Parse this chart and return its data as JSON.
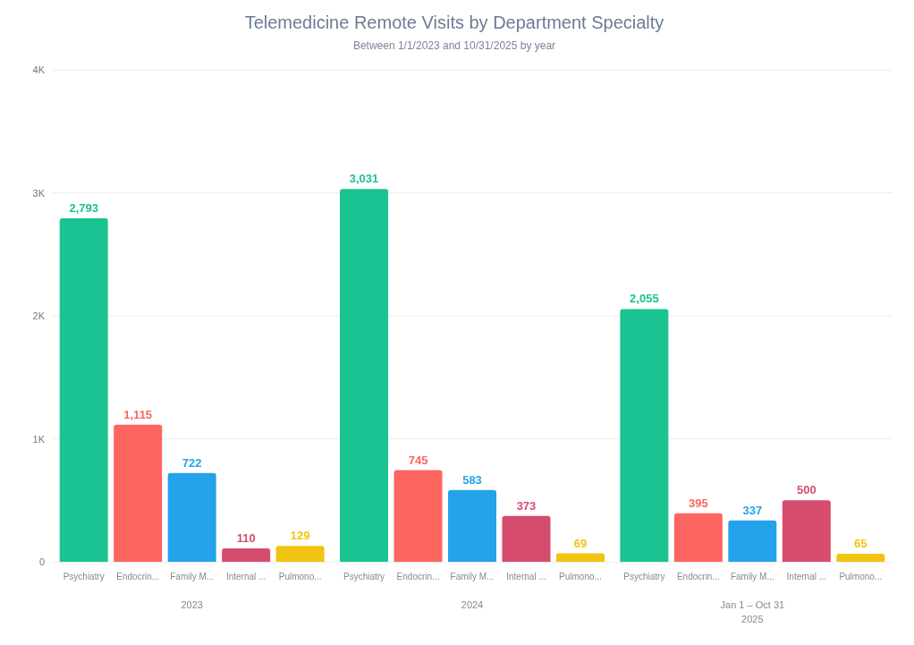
{
  "chart_data": {
    "type": "bar",
    "title": "Telemedicine Remote Visits by Department Specialty",
    "subtitle": "Between 1/1/2023 and 10/31/2025 by year",
    "categories": [
      "2023",
      "2024",
      "Jan 1 – Oct 31\n2025"
    ],
    "series": [
      {
        "name": "Psychiatry",
        "color": "#1bc393",
        "values": [
          2793,
          3031,
          2055
        ],
        "value_labels": [
          "2,793",
          "3,031",
          "2,055"
        ]
      },
      {
        "name": "Endocrin...",
        "color": "#fd6561",
        "values": [
          1115,
          745,
          395
        ],
        "value_labels": [
          "1,115",
          "745",
          "395"
        ]
      },
      {
        "name": "Family M...",
        "color": "#24a3eb",
        "values": [
          722,
          583,
          337
        ],
        "value_labels": [
          "722",
          "583",
          "337"
        ]
      },
      {
        "name": "Internal ...",
        "color": "#d64c6c",
        "values": [
          110,
          373,
          500
        ],
        "value_labels": [
          "110",
          "373",
          "500"
        ]
      },
      {
        "name": "Pulmono...",
        "color": "#f1c40f",
        "values": [
          129,
          69,
          65
        ],
        "value_labels": [
          "129",
          "69",
          "65"
        ]
      }
    ],
    "ylim": [
      0,
      4000
    ],
    "yticks": [
      {
        "value": 0,
        "label": "0"
      },
      {
        "value": 1000,
        "label": "1K"
      },
      {
        "value": 2000,
        "label": "2K"
      },
      {
        "value": 3000,
        "label": "3K"
      },
      {
        "value": 4000,
        "label": "4K"
      }
    ],
    "grid": "y",
    "legend": false
  }
}
